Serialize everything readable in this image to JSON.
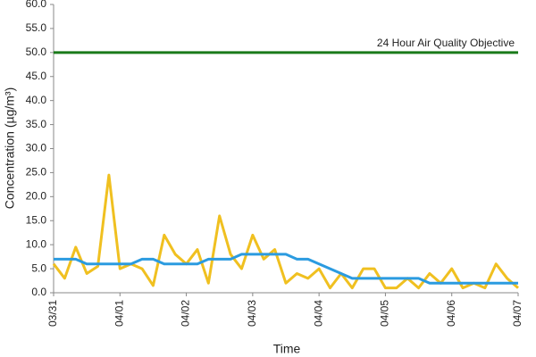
{
  "chart_data": {
    "type": "line",
    "x_label": "Time",
    "y_label": "Concentration (µg/m³)",
    "categories": [
      "03/31",
      null,
      null,
      null,
      null,
      null,
      "04/01",
      null,
      null,
      null,
      null,
      null,
      "04/02",
      null,
      null,
      null,
      null,
      null,
      "04/03",
      null,
      null,
      null,
      null,
      null,
      "04/04",
      null,
      null,
      null,
      null,
      null,
      "04/05",
      null,
      null,
      null,
      null,
      null,
      "04/06",
      null,
      null,
      null,
      null,
      null,
      "04/07"
    ],
    "series": [
      {
        "color": "#f0c020",
        "values": [
          6,
          3,
          9.5,
          4,
          5.5,
          24.5,
          5,
          6,
          5,
          1.5,
          12,
          8,
          6,
          9,
          2,
          16,
          8,
          5,
          12,
          7,
          9,
          2,
          4,
          3,
          5,
          1,
          4,
          1,
          5,
          5,
          1,
          1,
          3,
          1,
          4,
          2,
          5,
          1,
          2,
          1,
          6,
          3,
          1
        ]
      },
      {
        "color": "#2b9be0",
        "values": [
          7,
          7,
          7,
          6,
          6,
          6,
          6,
          6,
          7,
          7,
          6,
          6,
          6,
          6,
          7,
          7,
          7,
          8,
          8,
          8,
          8,
          8,
          7,
          7,
          6,
          5,
          4,
          3,
          3,
          3,
          3,
          3,
          3,
          3,
          2,
          2,
          2,
          2,
          2,
          2,
          2,
          2,
          2
        ]
      }
    ],
    "reference_line": {
      "value": 50,
      "label": "24 Hour Air Quality Objective",
      "color": "#1a7a1a"
    },
    "ylim": [
      0,
      60
    ],
    "yticks": [
      {
        "value": 0,
        "label": "0.0"
      },
      {
        "value": 5,
        "label": "5.0"
      },
      {
        "value": 10,
        "label": "10.0"
      },
      {
        "value": 15,
        "label": "15.0"
      },
      {
        "value": 20,
        "label": "20.0"
      },
      {
        "value": 25,
        "label": "25.0"
      },
      {
        "value": 30,
        "label": "30.0"
      },
      {
        "value": 35,
        "label": "35.0"
      },
      {
        "value": 40,
        "label": "40.0"
      },
      {
        "value": 45,
        "label": "45.0"
      },
      {
        "value": 50,
        "label": "50.0"
      },
      {
        "value": 55,
        "label": "55.0"
      },
      {
        "value": 60,
        "label": "60.0"
      }
    ],
    "grid": false
  }
}
